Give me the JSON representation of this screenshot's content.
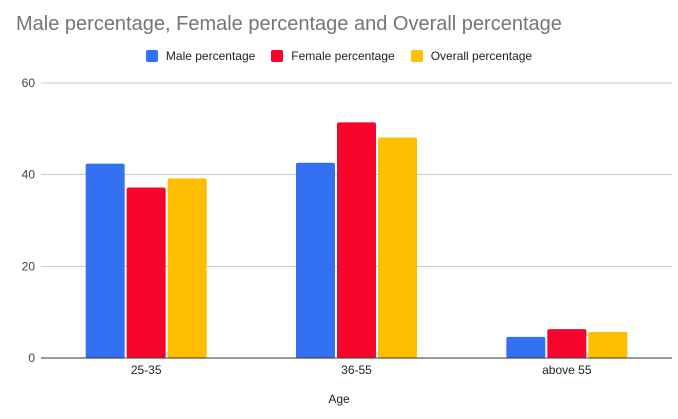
{
  "chart_data": {
    "type": "bar",
    "title": "Male percentage, Female percentage and Overall percentage",
    "xlabel": "Age",
    "ylabel": "",
    "categories": [
      "25-35",
      "36-55",
      "above 55"
    ],
    "series": [
      {
        "name": "Male percentage",
        "values": [
          42.4,
          42.6,
          4.6
        ],
        "color": "#3371f2"
      },
      {
        "name": "Female percentage",
        "values": [
          37.2,
          51.4,
          6.3
        ],
        "color": "#f7042d"
      },
      {
        "name": "Overall percentage",
        "values": [
          39.2,
          48.1,
          5.7
        ],
        "color": "#ffbf00"
      }
    ],
    "ylim": [
      0,
      60
    ],
    "yticks": [
      "0",
      "20",
      "40",
      "60"
    ],
    "grid": true,
    "legend_position": "top"
  }
}
